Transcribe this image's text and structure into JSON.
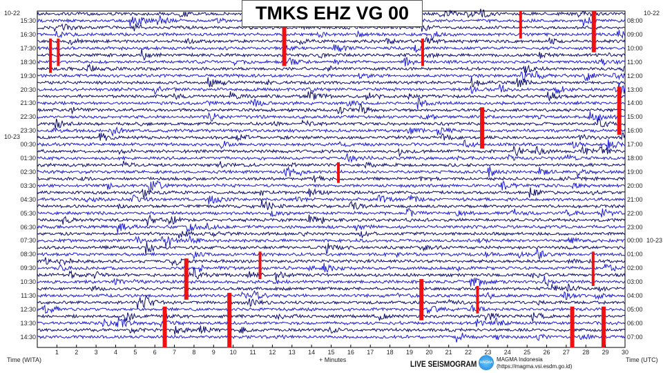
{
  "title": "TMKS EHZ VG 00",
  "chart_data": {
    "type": "line",
    "title": "TMKS EHZ VG 00",
    "xlabel": "+ Minutes",
    "ylabel_left": "Time (WITA)",
    "ylabel_right": "Time (UTC)",
    "xlim": [
      0,
      30
    ],
    "x_ticks": [
      "1",
      "2",
      "3",
      "4",
      "5",
      "6",
      "7",
      "8",
      "9",
      "10",
      "11",
      "12",
      "13",
      "14",
      "15",
      "16",
      "17",
      "18",
      "19",
      "20",
      "21",
      "22",
      "23",
      "24",
      "25",
      "26",
      "27",
      "28",
      "29",
      "30"
    ],
    "left_date_labels": [
      "10-22",
      "10-23"
    ],
    "left_ticks": [
      "15:30",
      "16:30",
      "17:30",
      "18:30",
      "19:30",
      "20:30",
      "21:30",
      "22:30",
      "23:30",
      "00:30",
      "01:30",
      "02:30",
      "03:30",
      "04:30",
      "05:30",
      "06:30",
      "07:30",
      "08:30",
      "09:30",
      "10:30",
      "11:30",
      "12:30",
      "13:30",
      "14:30"
    ],
    "right_date_labels": [
      "10-22",
      "10-23"
    ],
    "right_ticks": [
      "08:00",
      "09:00",
      "10:00",
      "11:00",
      "12:00",
      "13:00",
      "14:00",
      "15:00",
      "16:00",
      "17:00",
      "18:00",
      "19:00",
      "20:00",
      "21:00",
      "22:00",
      "23:00",
      "00:00",
      "01:00",
      "02:00",
      "03:00",
      "04:00",
      "05:00",
      "06:00",
      "07:00"
    ],
    "trace_colors": [
      "#0a0a6e",
      "#1a1ad8"
    ],
    "clip_color": "#ee1111",
    "lines_per_hour": 2,
    "minutes_per_line": 30
  },
  "footer": {
    "live": "LIVE SEISMOGRAM",
    "logo": "MAGMA",
    "org": "MAGMA Indonesia",
    "url": "(https://magma.vsi.esdm.go.id)"
  }
}
